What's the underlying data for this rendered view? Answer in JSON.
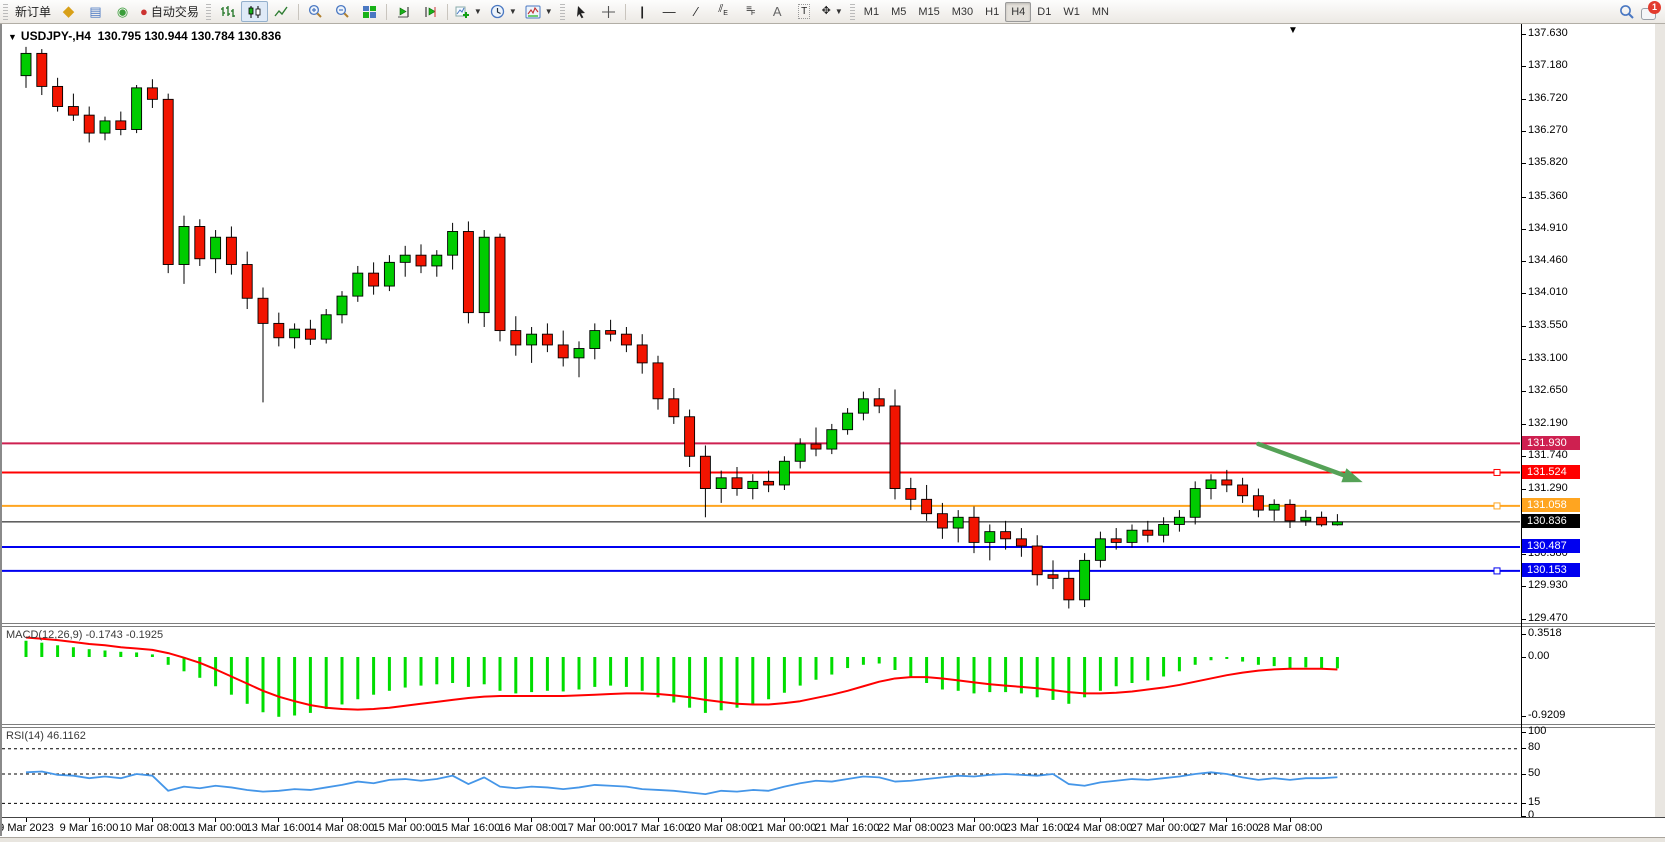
{
  "toolbar": {
    "new_order": "新订单",
    "auto_trading": "自动交易",
    "timeframes": [
      "M1",
      "M5",
      "M15",
      "M30",
      "H1",
      "H4",
      "D1",
      "W1",
      "MN"
    ],
    "active_timeframe": "H4",
    "notification_count": "1"
  },
  "chart": {
    "symbol_period": "USDJPY-,H4",
    "ohlc_text": "130.795 130.944 130.784 130.836"
  },
  "indicators": {
    "macd": {
      "title": "MACD(12,26,9)",
      "values_text": "-0.1743 -0.1925",
      "scale_labels": [
        "0.3518",
        "0.00",
        "-0.9209"
      ],
      "scale_values": [
        0.3518,
        0,
        -0.9209
      ]
    },
    "rsi": {
      "title": "RSI(14)",
      "value_text": "46.1162",
      "scale_labels": [
        "100",
        "80",
        "50",
        "15",
        "0"
      ],
      "scale_values": [
        100,
        80,
        50,
        15,
        0
      ],
      "dashed_levels": [
        80,
        50,
        15
      ]
    }
  },
  "price_axis": {
    "ticks": [
      137.63,
      137.18,
      136.72,
      136.27,
      135.82,
      135.36,
      134.91,
      134.46,
      134.01,
      133.55,
      133.1,
      132.65,
      132.19,
      131.74,
      131.29,
      130.38,
      129.93,
      129.47
    ]
  },
  "hlines": [
    {
      "price": 131.93,
      "label": "131.930",
      "color": "#CE2050",
      "width": 2,
      "handle": false,
      "text_color": "#fff"
    },
    {
      "price": 131.524,
      "label": "131.524",
      "color": "#FF0000",
      "width": 2,
      "handle": true,
      "text_color": "#fff"
    },
    {
      "price": 131.058,
      "label": "131.058",
      "color": "#FFA520",
      "width": 2,
      "handle": true,
      "text_color": "#fff"
    },
    {
      "price": 130.836,
      "label": "130.836",
      "color": "#000000",
      "width": 1,
      "handle": false,
      "text_color": "#fff",
      "is_current_price": true
    },
    {
      "price": 130.487,
      "label": "130.487",
      "color": "#0000F0",
      "width": 2,
      "handle": false,
      "text_color": "#fff"
    },
    {
      "price": 130.153,
      "label": "130.153",
      "color": "#0000F0",
      "width": 2,
      "handle": true,
      "text_color": "#fff"
    }
  ],
  "annotation_arrow": {
    "from_bar": 78.0,
    "from_price": 131.92,
    "to_bar": 84.6,
    "to_price": 131.39
  },
  "colors": {
    "candle_up": "#00CC00",
    "candle_down": "#F21400",
    "candle_border": "#000000",
    "macd_hist": "#00DD00",
    "macd_signal": "#FF0000",
    "rsi_line": "#4596E8",
    "arrow": "#55A257"
  },
  "chart_data": [
    {
      "type": "candlestick",
      "title": "USDJPY-,H4",
      "x_labels": [
        "9 Mar 2023",
        "9 Mar 16:00",
        "10 Mar 08:00",
        "13 Mar 00:00",
        "13 Mar 16:00",
        "14 Mar 08:00",
        "15 Mar 00:00",
        "15 Mar 16:00",
        "16 Mar 08:00",
        "17 Mar 00:00",
        "17 Mar 16:00",
        "20 Mar 08:00",
        "21 Mar 00:00",
        "21 Mar 16:00",
        "22 Mar 08:00",
        "23 Mar 00:00",
        "23 Mar 16:00",
        "24 Mar 08:00",
        "27 Mar 00:00",
        "27 Mar 16:00",
        "28 Mar 08:00"
      ],
      "bars_per_label": 4,
      "ylim": [
        129.4,
        137.75
      ],
      "ohlc": [
        [
          137.05,
          137.45,
          136.88,
          137.36
        ],
        [
          137.36,
          137.42,
          136.78,
          136.9
        ],
        [
          136.9,
          137.02,
          136.55,
          136.62
        ],
        [
          136.62,
          136.8,
          136.42,
          136.5
        ],
        [
          136.5,
          136.62,
          136.12,
          136.25
        ],
        [
          136.25,
          136.48,
          136.15,
          136.42
        ],
        [
          136.42,
          136.55,
          136.22,
          136.3
        ],
        [
          136.3,
          136.92,
          136.25,
          136.88
        ],
        [
          136.88,
          137.0,
          136.6,
          136.72
        ],
        [
          136.72,
          136.8,
          134.3,
          134.42
        ],
        [
          134.42,
          135.1,
          134.15,
          134.95
        ],
        [
          134.95,
          135.05,
          134.4,
          134.5
        ],
        [
          134.5,
          134.9,
          134.3,
          134.8
        ],
        [
          134.8,
          134.95,
          134.28,
          134.42
        ],
        [
          134.42,
          134.6,
          133.8,
          133.95
        ],
        [
          133.95,
          134.1,
          132.5,
          133.6
        ],
        [
          133.6,
          133.75,
          133.28,
          133.4
        ],
        [
          133.4,
          133.6,
          133.25,
          133.52
        ],
        [
          133.52,
          133.65,
          133.3,
          133.38
        ],
        [
          133.38,
          133.8,
          133.32,
          133.72
        ],
        [
          133.72,
          134.05,
          133.6,
          133.98
        ],
        [
          133.98,
          134.4,
          133.9,
          134.3
        ],
        [
          134.3,
          134.45,
          134.0,
          134.12
        ],
        [
          134.12,
          134.55,
          134.05,
          134.45
        ],
        [
          134.45,
          134.68,
          134.25,
          134.55
        ],
        [
          134.55,
          134.7,
          134.3,
          134.4
        ],
        [
          134.4,
          134.62,
          134.25,
          134.55
        ],
        [
          134.55,
          135.0,
          134.35,
          134.88
        ],
        [
          134.88,
          135.02,
          133.6,
          133.75
        ],
        [
          133.75,
          134.9,
          133.55,
          134.8
        ],
        [
          134.8,
          134.85,
          133.35,
          133.5
        ],
        [
          133.5,
          133.7,
          133.15,
          133.3
        ],
        [
          133.3,
          133.55,
          133.05,
          133.45
        ],
        [
          133.45,
          133.6,
          133.2,
          133.3
        ],
        [
          133.3,
          133.5,
          133.0,
          133.12
        ],
        [
          133.12,
          133.35,
          132.85,
          133.25
        ],
        [
          133.25,
          133.6,
          133.1,
          133.5
        ],
        [
          133.5,
          133.65,
          133.35,
          133.45
        ],
        [
          133.45,
          133.55,
          133.2,
          133.3
        ],
        [
          133.3,
          133.45,
          132.9,
          133.05
        ],
        [
          133.05,
          133.15,
          132.4,
          132.55
        ],
        [
          132.55,
          132.7,
          132.2,
          132.3
        ],
        [
          132.3,
          132.4,
          131.6,
          131.75
        ],
        [
          131.75,
          131.9,
          130.9,
          131.3
        ],
        [
          131.3,
          131.55,
          131.1,
          131.45
        ],
        [
          131.45,
          131.6,
          131.2,
          131.3
        ],
        [
          131.3,
          131.5,
          131.15,
          131.4
        ],
        [
          131.4,
          131.55,
          131.25,
          131.35
        ],
        [
          131.35,
          131.75,
          131.28,
          131.68
        ],
        [
          131.68,
          132.0,
          131.58,
          131.92
        ],
        [
          131.92,
          132.15,
          131.75,
          131.85
        ],
        [
          131.85,
          132.2,
          131.78,
          132.12
        ],
        [
          132.12,
          132.42,
          132.05,
          132.35
        ],
        [
          132.35,
          132.65,
          132.25,
          132.55
        ],
        [
          132.55,
          132.7,
          132.35,
          132.45
        ],
        [
          132.45,
          132.68,
          131.15,
          131.3
        ],
        [
          131.3,
          131.45,
          131.0,
          131.15
        ],
        [
          131.15,
          131.35,
          130.85,
          130.95
        ],
        [
          130.95,
          131.1,
          130.6,
          130.75
        ],
        [
          130.75,
          131.0,
          130.55,
          130.9
        ],
        [
          130.9,
          131.05,
          130.4,
          130.55
        ],
        [
          130.55,
          130.8,
          130.3,
          130.7
        ],
        [
          130.7,
          130.85,
          130.45,
          130.6
        ],
        [
          130.6,
          130.75,
          130.35,
          130.5
        ],
        [
          130.5,
          130.65,
          129.95,
          130.1
        ],
        [
          130.1,
          130.3,
          129.9,
          130.05
        ],
        [
          130.05,
          130.15,
          129.63,
          129.75
        ],
        [
          129.75,
          130.4,
          129.65,
          130.3
        ],
        [
          130.3,
          130.7,
          130.2,
          130.6
        ],
        [
          130.6,
          130.75,
          130.45,
          130.55
        ],
        [
          130.55,
          130.8,
          130.48,
          130.72
        ],
        [
          130.72,
          130.85,
          130.55,
          130.65
        ],
        [
          130.65,
          130.9,
          130.55,
          130.8
        ],
        [
          130.8,
          131.0,
          130.7,
          130.9
        ],
        [
          130.9,
          131.4,
          130.8,
          131.3
        ],
        [
          131.3,
          131.5,
          131.15,
          131.42
        ],
        [
          131.42,
          131.56,
          131.25,
          131.35
        ],
        [
          131.35,
          131.45,
          131.1,
          131.2
        ],
        [
          131.2,
          131.3,
          130.9,
          131.0
        ],
        [
          131.0,
          131.15,
          130.85,
          131.08
        ],
        [
          131.08,
          131.15,
          130.75,
          130.85
        ],
        [
          130.85,
          131.0,
          130.78,
          130.9
        ],
        [
          130.9,
          130.98,
          130.77,
          130.795
        ],
        [
          130.795,
          130.944,
          130.784,
          130.836
        ]
      ]
    },
    {
      "type": "bar",
      "name": "MACD histogram",
      "values": [
        0.25,
        0.22,
        0.18,
        0.15,
        0.12,
        0.1,
        0.08,
        0.07,
        0.04,
        -0.12,
        -0.22,
        -0.32,
        -0.45,
        -0.58,
        -0.72,
        -0.85,
        -0.92,
        -0.9,
        -0.86,
        -0.8,
        -0.73,
        -0.65,
        -0.58,
        -0.52,
        -0.47,
        -0.44,
        -0.42,
        -0.4,
        -0.46,
        -0.42,
        -0.52,
        -0.56,
        -0.54,
        -0.52,
        -0.53,
        -0.5,
        -0.46,
        -0.44,
        -0.46,
        -0.52,
        -0.62,
        -0.7,
        -0.78,
        -0.86,
        -0.82,
        -0.78,
        -0.72,
        -0.65,
        -0.55,
        -0.44,
        -0.35,
        -0.27,
        -0.17,
        -0.12,
        -0.1,
        -0.2,
        -0.3,
        -0.4,
        -0.5,
        -0.52,
        -0.56,
        -0.54,
        -0.54,
        -0.56,
        -0.62,
        -0.66,
        -0.72,
        -0.62,
        -0.52,
        -0.45,
        -0.4,
        -0.36,
        -0.3,
        -0.22,
        -0.12,
        -0.05,
        -0.03,
        -0.07,
        -0.12,
        -0.14,
        -0.17,
        -0.16,
        -0.17,
        -0.1743
      ]
    },
    {
      "type": "line",
      "name": "MACD signal",
      "values": [
        0.3,
        0.28,
        0.26,
        0.23,
        0.2,
        0.18,
        0.15,
        0.13,
        0.11,
        0.06,
        -0.01,
        -0.09,
        -0.19,
        -0.3,
        -0.41,
        -0.52,
        -0.61,
        -0.68,
        -0.74,
        -0.78,
        -0.8,
        -0.81,
        -0.8,
        -0.78,
        -0.75,
        -0.72,
        -0.69,
        -0.66,
        -0.63,
        -0.61,
        -0.6,
        -0.6,
        -0.6,
        -0.6,
        -0.6,
        -0.59,
        -0.58,
        -0.57,
        -0.56,
        -0.56,
        -0.57,
        -0.59,
        -0.62,
        -0.66,
        -0.69,
        -0.72,
        -0.73,
        -0.73,
        -0.71,
        -0.68,
        -0.63,
        -0.58,
        -0.52,
        -0.45,
        -0.38,
        -0.33,
        -0.31,
        -0.31,
        -0.33,
        -0.36,
        -0.39,
        -0.42,
        -0.44,
        -0.46,
        -0.48,
        -0.51,
        -0.54,
        -0.56,
        -0.56,
        -0.55,
        -0.53,
        -0.5,
        -0.47,
        -0.43,
        -0.38,
        -0.33,
        -0.28,
        -0.24,
        -0.21,
        -0.19,
        -0.18,
        -0.18,
        -0.18,
        -0.1925
      ]
    },
    {
      "type": "line",
      "name": "RSI(14)",
      "ylim": [
        0,
        100
      ],
      "values": [
        52,
        53,
        49,
        48,
        45,
        47,
        45,
        50,
        48,
        30,
        35,
        33,
        36,
        34,
        31,
        29,
        30,
        32,
        31,
        34,
        37,
        41,
        39,
        43,
        44,
        42,
        44,
        48,
        38,
        46,
        35,
        33,
        35,
        34,
        32,
        34,
        37,
        36,
        35,
        32,
        31,
        30,
        28,
        26,
        30,
        29,
        31,
        30,
        35,
        39,
        42,
        41,
        44,
        47,
        46,
        41,
        42,
        44,
        46,
        48,
        47,
        49,
        50,
        49,
        48,
        50,
        38,
        36,
        40,
        42,
        44,
        43,
        45,
        47,
        50,
        52,
        50,
        46,
        43,
        45,
        43,
        45,
        45,
        46.12
      ]
    }
  ]
}
